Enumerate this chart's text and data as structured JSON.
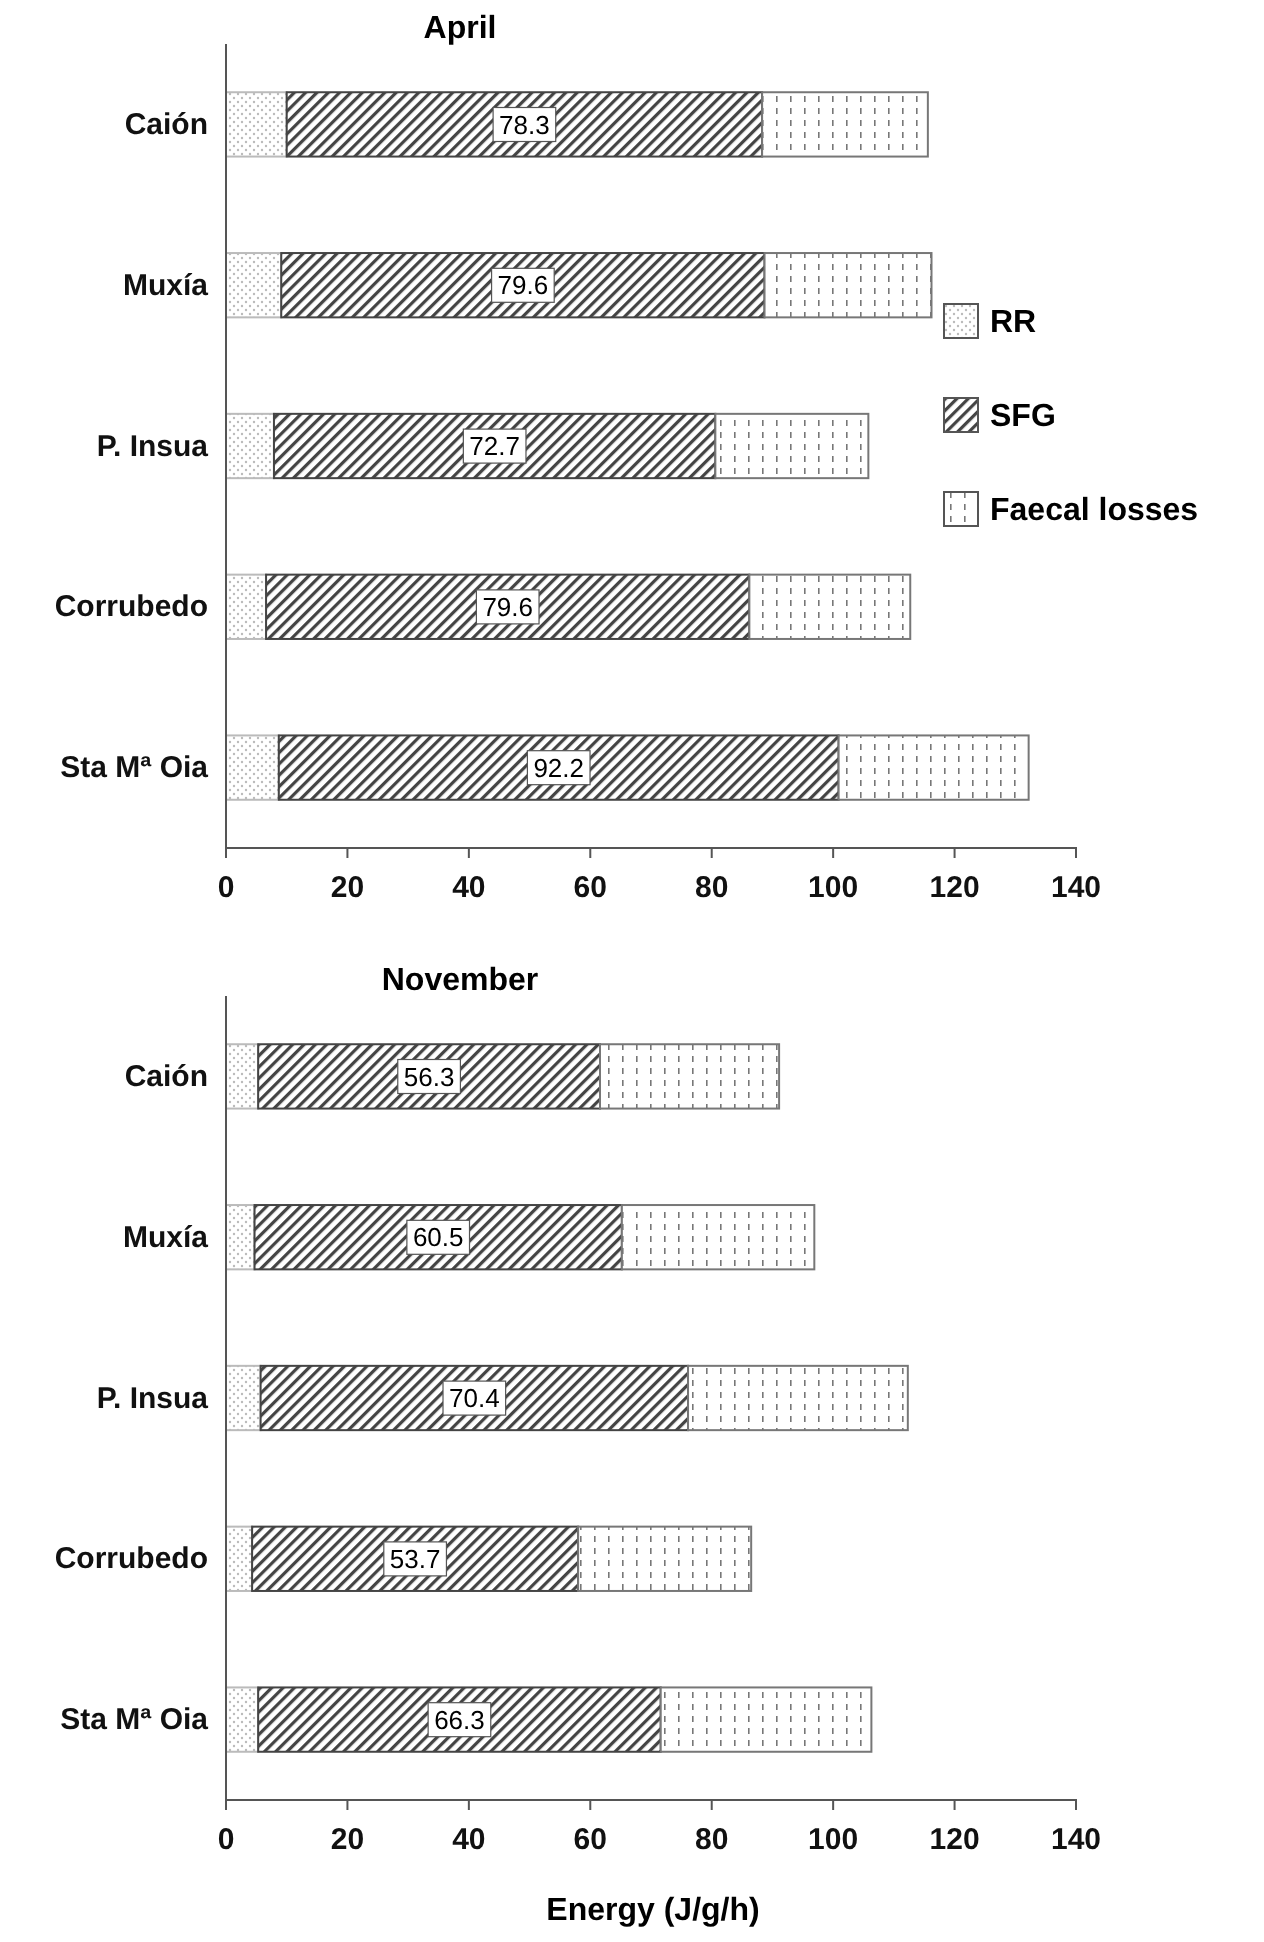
{
  "chart_data": [
    {
      "type": "bar",
      "orientation": "horizontal",
      "stacked": true,
      "title": "April",
      "categories": [
        "Caión",
        "Muxía",
        "P. Insua",
        "Corrubedo",
        "Sta Mª Oia"
      ],
      "xlim": [
        0,
        140
      ],
      "xticks": [
        0,
        20,
        40,
        60,
        80,
        100,
        120,
        140
      ],
      "legend": "right",
      "series": [
        {
          "name": "RR",
          "color": "#bbbbbb",
          "values": [
            10.0,
            9.1,
            7.9,
            6.6,
            8.7
          ]
        },
        {
          "name": "SFG",
          "color": "#444444",
          "values": [
            78.3,
            79.6,
            72.7,
            79.6,
            92.2
          ],
          "value_labels": [
            "78.3",
            "79.6",
            "72.7",
            "79.6",
            "92.2"
          ]
        },
        {
          "name": "Faecal losses",
          "color": "#777777",
          "values": [
            27.3,
            27.5,
            25.2,
            26.5,
            31.3
          ]
        }
      ]
    },
    {
      "type": "bar",
      "orientation": "horizontal",
      "stacked": true,
      "title": "November",
      "xlabel": "Energy (J/g/h)",
      "categories": [
        "Caión",
        "Muxía",
        "P. Insua",
        "Corrubedo",
        "Sta Mª Oia"
      ],
      "xlim": [
        0,
        140
      ],
      "xticks": [
        0,
        20,
        40,
        60,
        80,
        100,
        120,
        140
      ],
      "series": [
        {
          "color": "#bbbbbb",
          "values": [
            5.3,
            4.7,
            5.7,
            4.3,
            5.3
          ]
        },
        {
          "color": "#444444",
          "values": [
            56.3,
            60.5,
            70.4,
            53.7,
            66.3
          ],
          "value_labels": [
            "56.3",
            "60.5",
            "70.4",
            "53.7",
            "66.3"
          ]
        },
        {
          "color": "#777777",
          "values": [
            29.5,
            31.7,
            36.2,
            28.5,
            34.7
          ]
        }
      ]
    }
  ]
}
